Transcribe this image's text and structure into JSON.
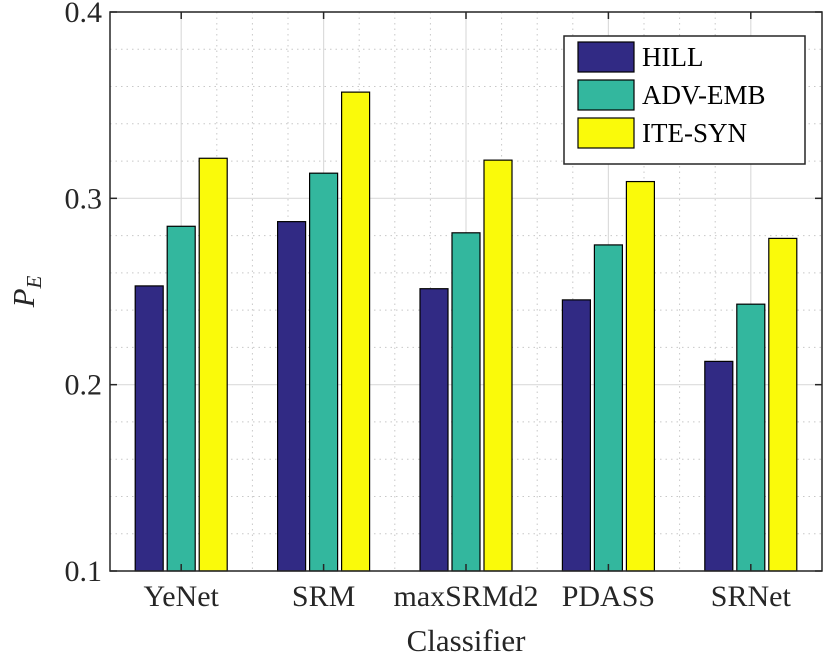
{
  "chart_data": {
    "type": "bar",
    "title": "",
    "xlabel": "Classifier",
    "ylabel": "P_E",
    "ylabel_main": "P",
    "ylabel_sub": "E",
    "ylim": [
      0.1,
      0.4
    ],
    "yticks": [
      "0.1",
      "0.2",
      "0.3",
      "0.4"
    ],
    "ytick_values": [
      0.1,
      0.2,
      0.3,
      0.4
    ],
    "grid": true,
    "minor_grid": true,
    "legend_position": "top-right",
    "categories": [
      "YeNet",
      "SRM",
      "maxSRMd2",
      "PDASS",
      "SRNet"
    ],
    "series": [
      {
        "name": "HILL",
        "color": "#312a84",
        "values": [
          0.253,
          0.2875,
          0.2515,
          0.2455,
          0.2125
        ]
      },
      {
        "name": "ADV-EMB",
        "color": "#33b79e",
        "values": [
          0.285,
          0.3135,
          0.2815,
          0.275,
          0.2432
        ]
      },
      {
        "name": "ITE-SYN",
        "color": "#fafa0a",
        "values": [
          0.3215,
          0.357,
          0.3205,
          0.309,
          0.2785
        ]
      }
    ]
  }
}
